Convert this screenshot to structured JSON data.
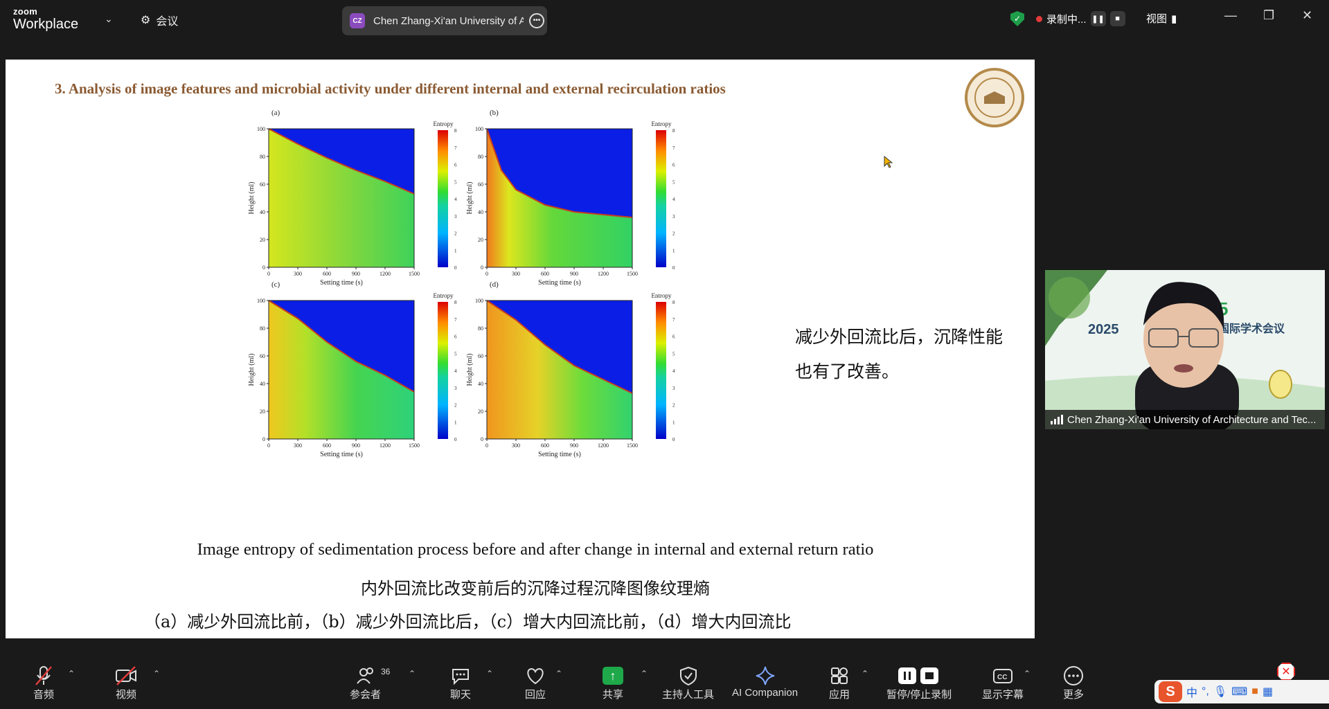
{
  "app": {
    "logo_top": "zoom",
    "logo_bottom": "Workplace",
    "meeting_label": "会议"
  },
  "tab": {
    "initials": "CZ",
    "title": "Chen Zhang-Xi'an University of A"
  },
  "status": {
    "recording": "录制中...",
    "view": "视图"
  },
  "slide": {
    "title": "3. Analysis of image features and microbial activity under different internal and external recirculation ratios",
    "side_text": "减少外回流比后，沉降性能也有了改善。",
    "caption_en": "Image entropy of sedimentation process before and after change in internal and external return ratio",
    "caption_cn": "内外回流比改变前后的沉降过程沉降图像纹理熵",
    "caption_parts": "（a）减少外回流比前，（b）减少外回流比后，（c）增大内回流比前，（d）增大内回流比"
  },
  "chart_data": [
    {
      "type": "heatmap",
      "panel": "(a)",
      "xlabel": "Setting time (s)",
      "ylabel": "Height (ml)",
      "x_ticks": [
        0,
        300,
        600,
        900,
        1200,
        1500
      ],
      "y_ticks": [
        0,
        20,
        40,
        60,
        80,
        100
      ],
      "xlim": [
        0,
        1500
      ],
      "ylim": [
        0,
        100
      ],
      "colorbar": {
        "label": "Entropy",
        "ticks": [
          0,
          1,
          2,
          3,
          4,
          5,
          6,
          7,
          8
        ]
      },
      "interface_height": [
        [
          0,
          100
        ],
        [
          300,
          89
        ],
        [
          600,
          79
        ],
        [
          900,
          70
        ],
        [
          1200,
          62
        ],
        [
          1500,
          53
        ]
      ]
    },
    {
      "type": "heatmap",
      "panel": "(b)",
      "xlabel": "Setting time (s)",
      "ylabel": "Height (ml)",
      "x_ticks": [
        0,
        300,
        600,
        900,
        1200,
        1500
      ],
      "y_ticks": [
        0,
        20,
        40,
        60,
        80,
        100
      ],
      "xlim": [
        0,
        1500
      ],
      "ylim": [
        0,
        100
      ],
      "colorbar": {
        "label": "Entropy",
        "ticks": [
          0,
          1,
          2,
          3,
          4,
          5,
          6,
          7,
          8
        ]
      },
      "interface_height": [
        [
          0,
          100
        ],
        [
          150,
          70
        ],
        [
          300,
          56
        ],
        [
          600,
          45
        ],
        [
          900,
          40
        ],
        [
          1200,
          38
        ],
        [
          1500,
          36
        ]
      ]
    },
    {
      "type": "heatmap",
      "panel": "(c)",
      "xlabel": "Setting time (s)",
      "ylabel": "Height (ml)",
      "x_ticks": [
        0,
        300,
        600,
        900,
        1200,
        1500
      ],
      "y_ticks": [
        0,
        20,
        40,
        60,
        80,
        100
      ],
      "xlim": [
        0,
        1500
      ],
      "ylim": [
        0,
        100
      ],
      "colorbar": {
        "label": "Entropy",
        "ticks": [
          0,
          1,
          2,
          3,
          4,
          5,
          6,
          7,
          8
        ]
      },
      "interface_height": [
        [
          0,
          100
        ],
        [
          300,
          87
        ],
        [
          600,
          70
        ],
        [
          900,
          56
        ],
        [
          1200,
          46
        ],
        [
          1500,
          34
        ]
      ]
    },
    {
      "type": "heatmap",
      "panel": "(d)",
      "xlabel": "Setting time (s)",
      "ylabel": "Height (ml)",
      "x_ticks": [
        0,
        300,
        600,
        900,
        1200,
        1500
      ],
      "y_ticks": [
        0,
        20,
        40,
        60,
        80,
        100
      ],
      "xlim": [
        0,
        1500
      ],
      "ylim": [
        0,
        100
      ],
      "colorbar": {
        "label": "Entropy",
        "ticks": [
          0,
          1,
          2,
          3,
          4,
          5,
          6,
          7,
          8
        ]
      },
      "interface_height": [
        [
          0,
          100
        ],
        [
          300,
          86
        ],
        [
          600,
          68
        ],
        [
          900,
          53
        ],
        [
          1200,
          43
        ],
        [
          1500,
          33
        ]
      ]
    }
  ],
  "video": {
    "name": "Chen Zhang-Xi'an University of Architecture and Tec...",
    "banner_year": "2025",
    "banner_text": "国际学术会议"
  },
  "toolbar": {
    "audio": "音频",
    "video": "视频",
    "participants": "参会者",
    "participants_count": "36",
    "chat": "聊天",
    "react": "回应",
    "share": "共享",
    "host_tools": "主持人工具",
    "ai": "AI Companion",
    "apps": "应用",
    "record": "暂停/停止录制",
    "cc": "显示字幕",
    "more": "更多"
  },
  "ime": {
    "lang": "中"
  },
  "colors": {
    "title": "#8a5a32",
    "share": "#1ea84a",
    "rec": "#e23a3a"
  }
}
